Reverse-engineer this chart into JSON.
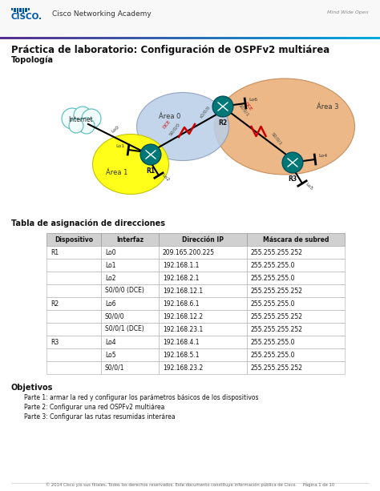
{
  "title": "Práctica de laboratorio: Configuración de OSPFv2 multiárea",
  "topology_label": "Topología",
  "table_title": "Tabla de asignación de direcciones",
  "objectives_title": "Objetivos",
  "objectives": [
    "Parte 1: armar la red y configurar los parámetros básicos de los dispositivos",
    "Parte 2: Configurar una red OSPFv2 multiárea",
    "Parte 3: Configurar las rutas resumidas interárea"
  ],
  "table_headers": [
    "Dispositivo",
    "Interfaz",
    "Dirección IP",
    "Máscara de subred"
  ],
  "table_rows": [
    [
      "R1",
      "Lo0",
      "209.165.200.225",
      "255.255.255.252"
    ],
    [
      "",
      "Lo1",
      "192.168.1.1",
      "255.255.255.0"
    ],
    [
      "",
      "Lo2",
      "192.168.2.1",
      "255.255.255.0"
    ],
    [
      "",
      "S0/0/0 (DCE)",
      "192.168.12.1",
      "255.255.255.252"
    ],
    [
      "R2",
      "Lo6",
      "192.168.6.1",
      "255.255.255.0"
    ],
    [
      "",
      "S0/0/0",
      "192.168.12.2",
      "255.255.255.252"
    ],
    [
      "",
      "S0/0/1 (DCE)",
      "192.168.23.1",
      "255.255.255.252"
    ],
    [
      "R3",
      "Lo4",
      "192.168.4.1",
      "255.255.255.0"
    ],
    [
      "",
      "Lo5",
      "192.168.5.1",
      "255.255.255.0"
    ],
    [
      "",
      "S0/0/1",
      "192.168.23.2",
      "255.255.255.252"
    ]
  ],
  "footer": "© 2014 Cisco y/o sus filiales. Todos los derechos reservados. Este documento constituye información pública de Cisco.     Página 1 de 10",
  "cisco_blue": "#0057a8",
  "bg_color": "#ffffff",
  "table_header_bg": "#d0d0d0",
  "area0_color": "#b8cee8",
  "area1_color": "#ffff00",
  "area3_color": "#e8a060",
  "router_color": "#007777",
  "internet_color": "#55bbbb",
  "line_black": "#000000",
  "line_red": "#cc0000",
  "bar_left": "#5b2d8e",
  "bar_right": "#00aadd"
}
